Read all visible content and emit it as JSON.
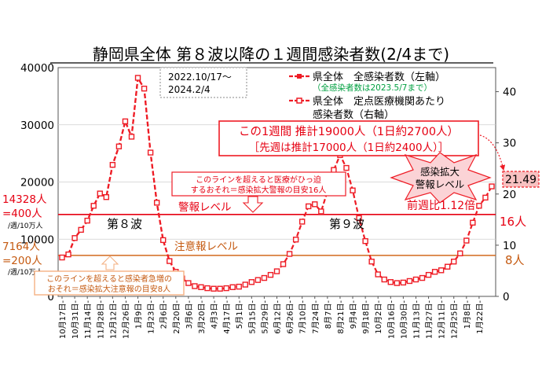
{
  "title": "静岡県全体 第８波以降の１週間感染者数(2/4まで)",
  "period_label": [
    "2022.10/17～",
    "2024.2/4"
  ],
  "legend": {
    "series1": "県全体　全感染者数（左軸）",
    "series1_note": "（全感染者数は2023.5/7まで）",
    "series2_line1": "県全体　定点医療機関あたり",
    "series2_line2": "感染者数（右軸）"
  },
  "callout": {
    "line1": "この1週間 推計19000人（1日約2700人）",
    "line2": "［先週は推計17000人（1日約2400人）］"
  },
  "alert_badge": [
    "感染拡大",
    "警報レベル"
  ],
  "latest_value": "21.49",
  "wow_ratio": "前週比1.12倍",
  "wave_labels": {
    "wave8": "第８波",
    "wave9": "第９波"
  },
  "warning": {
    "label": "警報レベル",
    "left_value": "14328人",
    "left_eq": "=400人",
    "left_unit": "/週/10万人",
    "right_value": "16人",
    "note_line1": "このラインを超えると医療がひっ迫",
    "note_line2": "するおそれ＝感染拡大警報の目安16人"
  },
  "caution": {
    "label": "注意報レベル",
    "left_value": "7164人",
    "left_eq": "=200人",
    "left_unit": "/週/10万人",
    "right_value": "8人",
    "note_line1": "このラインを超えると感染者急増の",
    "note_line2": "おそれ＝感染拡大注意報の目安8人"
  },
  "colors": {
    "series": "#ee1c25",
    "warning_line": "#e60012",
    "caution_line": "#d2691e",
    "note_fill": "#ffffff",
    "caution_note_text": "#c55a11",
    "caution_arrow": "#f4b183",
    "badge_fill": "#fbd3d6",
    "legend_note": "#00a040"
  },
  "chart_data": {
    "type": "line",
    "x_tick_labels": [
      "10月17日",
      "10月31日",
      "11月14日",
      "11月28日",
      "12月12日",
      "12月26日",
      "1月9日",
      "1月23日",
      "2月6日",
      "2月20日",
      "3月6日",
      "3月20日",
      "4月3日",
      "4月17日",
      "5月1日",
      "5月15日",
      "5月29日",
      "6月12日",
      "6月26日",
      "7月10日",
      "7月24日",
      "8月7日",
      "8月21日",
      "9月4日",
      "9月18日",
      "10月2日",
      "10月16日",
      "10月30日",
      "11月13日",
      "11月27日",
      "12月11日",
      "12月25日",
      "1月8日",
      "1月22日"
    ],
    "weeks": 69,
    "left_axis": {
      "min": 0,
      "max": 40000,
      "ticks": [
        0,
        10000,
        20000,
        30000,
        40000
      ]
    },
    "right_axis": {
      "min": 0,
      "max": 44.7,
      "ticks": [
        0,
        10,
        20,
        30,
        40
      ]
    },
    "series": [
      {
        "name": "県全体　全感染者数（左軸）",
        "axis": "left",
        "values": [
          6800,
          7300,
          10200,
          11600,
          13200,
          15800,
          18000,
          17400,
          23000,
          26200,
          30600,
          27900,
          38200,
          36300,
          25100,
          16400,
          9800,
          6200,
          4300,
          3100
        ]
      },
      {
        "name": "県全体　定点医療機関あたり感染者数（右軸）",
        "axis": "right",
        "values": [
          7.6,
          8.2,
          11.4,
          13.0,
          14.8,
          17.7,
          20.1,
          19.4,
          25.7,
          29.3,
          34.2,
          31.2,
          42.7,
          40.6,
          28.1,
          18.3,
          11.0,
          6.9,
          4.8,
          3.5,
          2.6,
          2.0,
          1.8,
          1.6,
          1.5,
          1.5,
          1.6,
          1.8,
          1.9,
          2.3,
          2.8,
          3.2,
          3.6,
          4.2,
          4.9,
          6.3,
          8.3,
          11.1,
          14.6,
          17.6,
          18.0,
          16.6,
          20.5,
          24.7,
          27.6,
          25.1,
          20.7,
          15.3,
          10.8,
          6.8,
          4.3,
          3.3,
          2.8,
          2.6,
          2.7,
          3.0,
          3.3,
          3.6,
          4.2,
          4.8,
          5.1,
          5.8,
          6.8,
          8.4,
          10.9,
          14.4,
          17.7,
          19.3,
          21.49
        ]
      }
    ],
    "reference_lines": [
      {
        "name": "警報レベル",
        "left": 14328,
        "right": 16
      },
      {
        "name": "注意報レベル",
        "left": 7164,
        "right": 8
      }
    ],
    "annotations": [
      "第８波",
      "第９波",
      "前週比1.12倍"
    ]
  }
}
